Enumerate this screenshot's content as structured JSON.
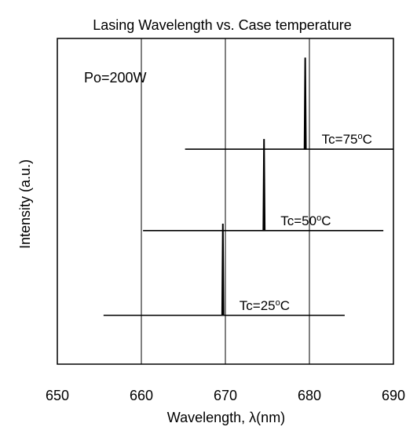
{
  "chart_data": {
    "type": "line",
    "title": "Lasing Wavelength vs. Case temperature",
    "xlabel": "Wavelength, λ(nm)",
    "ylabel": "Intensity (a.u.)",
    "xlim": [
      650,
      690
    ],
    "x_ticks": [
      "650",
      "660",
      "670",
      "680",
      "690"
    ],
    "vertical_gridlines": [
      660,
      670,
      680
    ],
    "annotation": "Po=200W",
    "series": [
      {
        "name": "Tc=25°C",
        "label_parts": [
          "Tc=25",
          "o",
          "C"
        ],
        "baseline_x": [
          655.5,
          684.2
        ],
        "baseline_level": 0.15,
        "peak_wavelength": 669.7,
        "peak_height": 0.28
      },
      {
        "name": "Tc=50°C",
        "label_parts": [
          "Tc=50",
          "o",
          "C"
        ],
        "baseline_x": [
          660.2,
          688.8
        ],
        "baseline_level": 0.41,
        "peak_wavelength": 674.6,
        "peak_height": 0.28
      },
      {
        "name": "Tc=75°C",
        "label_parts": [
          "Tc=75",
          "o",
          "C"
        ],
        "baseline_x": [
          665.2,
          690
        ],
        "baseline_level": 0.66,
        "peak_wavelength": 679.5,
        "peak_height": 0.28
      }
    ]
  }
}
